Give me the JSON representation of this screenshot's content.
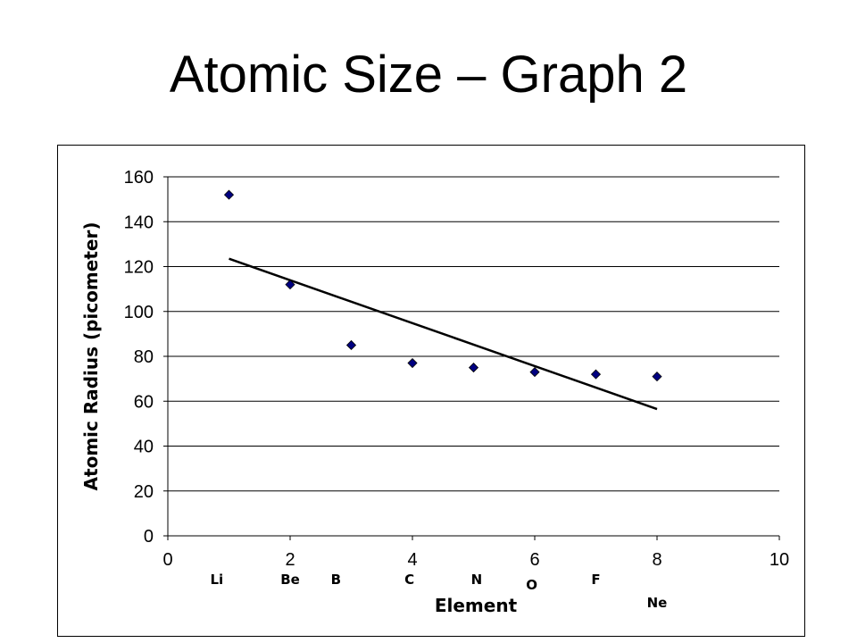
{
  "slide": {
    "title": "Atomic Size – Graph 2"
  },
  "chart_data": {
    "type": "scatter",
    "title": "",
    "xlabel": "Element",
    "ylabel": "Atomic Radius (picometer)",
    "xlim": [
      0,
      10
    ],
    "ylim": [
      0,
      160
    ],
    "xticks": [
      0,
      2,
      4,
      6,
      8,
      10
    ],
    "yticks": [
      0,
      20,
      40,
      60,
      80,
      100,
      120,
      140,
      160
    ],
    "grid": "horizontal",
    "legend": "none",
    "marker": "diamond",
    "marker_color": "#000080",
    "series": [
      {
        "points": [
          {
            "x": 1,
            "y": 152
          },
          {
            "x": 2,
            "y": 112
          },
          {
            "x": 3,
            "y": 85
          },
          {
            "x": 4,
            "y": 77
          },
          {
            "x": 5,
            "y": 75
          },
          {
            "x": 6,
            "y": 73
          },
          {
            "x": 7,
            "y": 72
          },
          {
            "x": 8,
            "y": 71
          }
        ]
      }
    ],
    "trendline": {
      "type": "linear",
      "from": {
        "x": 1,
        "y": 123.5
      },
      "to": {
        "x": 8,
        "y": 56.5
      }
    },
    "element_labels": [
      {
        "text": "Li",
        "x": 0.8,
        "row": 1
      },
      {
        "text": "Be",
        "x": 2.0,
        "row": 1
      },
      {
        "text": "B",
        "x": 2.75,
        "row": 1
      },
      {
        "text": "C",
        "x": 3.95,
        "row": 1
      },
      {
        "text": "N",
        "x": 5.05,
        "row": 1
      },
      {
        "text": "O",
        "x": 5.95,
        "row": 2
      },
      {
        "text": "F",
        "x": 7.0,
        "row": 1
      },
      {
        "text": "Ne",
        "x": 8.0,
        "row": 3
      }
    ]
  }
}
